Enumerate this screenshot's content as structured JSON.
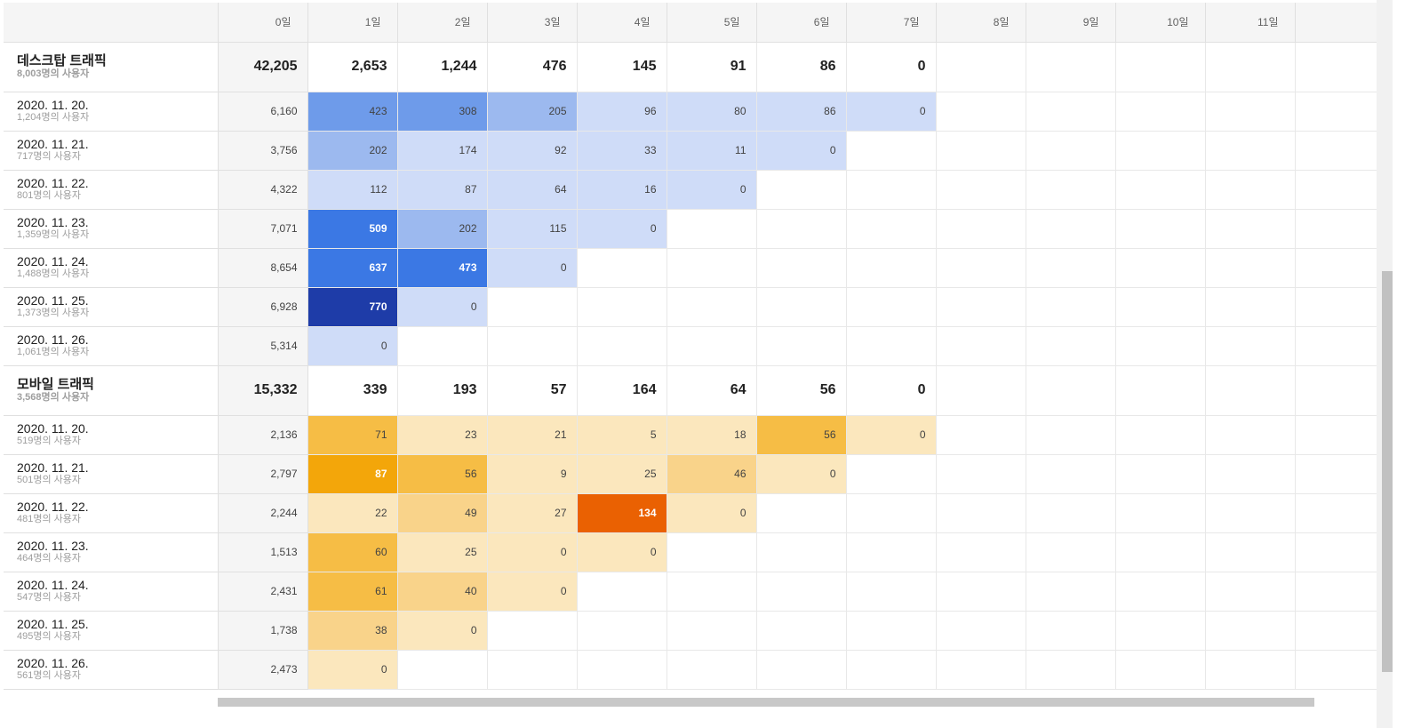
{
  "days": [
    "0일",
    "1일",
    "2일",
    "3일",
    "4일",
    "5일",
    "6일",
    "7일",
    "8일",
    "9일",
    "10일",
    "11일"
  ],
  "groups": [
    {
      "name": "데스크탑 트래픽",
      "users": "8,003명의 사용자",
      "theme": "blue",
      "total": "42,205",
      "day_totals": [
        "2,653",
        "1,244",
        "476",
        "145",
        "91",
        "86",
        "0"
      ],
      "rows": [
        {
          "date": "2020. 11. 20.",
          "users": "1,204명의 사용자",
          "total": "6,160",
          "values": [
            423,
            308,
            205,
            96,
            80,
            86,
            0
          ]
        },
        {
          "date": "2020. 11. 21.",
          "users": "717명의 사용자",
          "total": "3,756",
          "values": [
            202,
            174,
            92,
            33,
            11,
            0
          ]
        },
        {
          "date": "2020. 11. 22.",
          "users": "801명의 사용자",
          "total": "4,322",
          "values": [
            112,
            87,
            64,
            16,
            0
          ]
        },
        {
          "date": "2020. 11. 23.",
          "users": "1,359명의 사용자",
          "total": "7,071",
          "values": [
            509,
            202,
            115,
            0
          ]
        },
        {
          "date": "2020. 11. 24.",
          "users": "1,488명의 사용자",
          "total": "8,654",
          "values": [
            637,
            473,
            0
          ]
        },
        {
          "date": "2020. 11. 25.",
          "users": "1,373명의 사용자",
          "total": "6,928",
          "values": [
            770,
            0
          ]
        },
        {
          "date": "2020. 11. 26.",
          "users": "1,061명의 사용자",
          "total": "5,314",
          "values": [
            0
          ]
        }
      ]
    },
    {
      "name": "모바일 트래픽",
      "users": "3,568명의 사용자",
      "theme": "orange",
      "total": "15,332",
      "day_totals": [
        "339",
        "193",
        "57",
        "164",
        "64",
        "56",
        "0"
      ],
      "rows": [
        {
          "date": "2020. 11. 20.",
          "users": "519명의 사용자",
          "total": "2,136",
          "values": [
            71,
            23,
            21,
            5,
            18,
            56,
            0
          ]
        },
        {
          "date": "2020. 11. 21.",
          "users": "501명의 사용자",
          "total": "2,797",
          "values": [
            87,
            56,
            9,
            25,
            46,
            0
          ]
        },
        {
          "date": "2020. 11. 22.",
          "users": "481명의 사용자",
          "total": "2,244",
          "values": [
            22,
            49,
            27,
            134,
            0
          ]
        },
        {
          "date": "2020. 11. 23.",
          "users": "464명의 사용자",
          "total": "1,513",
          "values": [
            60,
            25,
            0,
            0
          ]
        },
        {
          "date": "2020. 11. 24.",
          "users": "547명의 사용자",
          "total": "2,431",
          "values": [
            61,
            40,
            0
          ]
        },
        {
          "date": "2020. 11. 25.",
          "users": "495명의 사용자",
          "total": "1,738",
          "values": [
            38,
            0
          ]
        },
        {
          "date": "2020. 11. 26.",
          "users": "561명의 사용자",
          "total": "2,473",
          "values": [
            0
          ]
        }
      ]
    }
  ],
  "colors": {
    "blue_scale": [
      "#cfdcf8",
      "#9cb9ef",
      "#6e9bea",
      "#3b78e4",
      "#1e3ca8"
    ],
    "orange_scale": [
      "#fbe7bd",
      "#f9d38a",
      "#f6bd45",
      "#f3a60a",
      "#ea6102"
    ],
    "header_bg": "#f5f5f5"
  }
}
